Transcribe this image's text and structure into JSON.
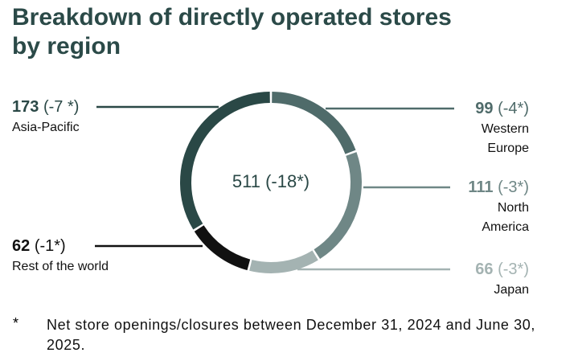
{
  "chart_data": {
    "type": "donut",
    "title": "Breakdown of directly operated stores by region",
    "categories": [
      "Western Europe",
      "North America",
      "Japan",
      "Rest of the world",
      "Asia-Pacific"
    ],
    "values": [
      99,
      111,
      66,
      62,
      173
    ],
    "change_labels": [
      "(-4*)",
      "(-3*)",
      "(-3*)",
      "(-1*)",
      "(-7 *)"
    ],
    "colors": [
      "#4f6b6a",
      "#6f8786",
      "#a4b3b2",
      "#111111",
      "#2a4846"
    ],
    "center_label": "511 (-18*)",
    "footnote_marker": "*",
    "footnote": "Net store openings/closures between December 31, 2024 and June 30, 2025."
  }
}
